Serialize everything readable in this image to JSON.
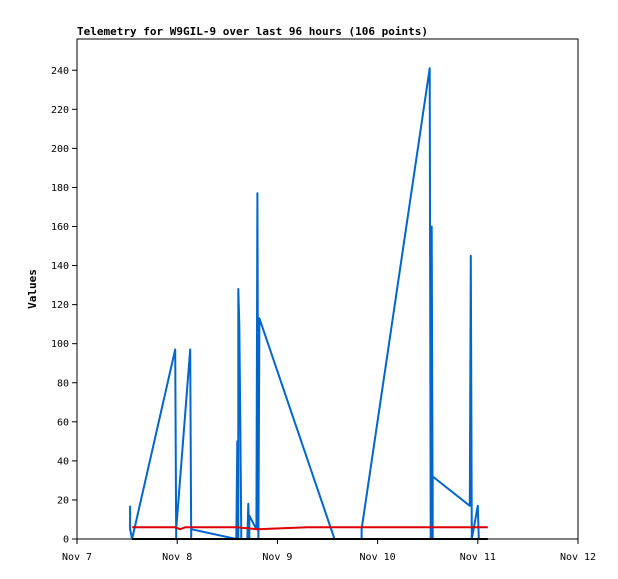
{
  "chart_data": {
    "type": "line",
    "title": "Telemetry for W9GIL-9 over last 96 hours (106 points)",
    "xlabel": "",
    "ylabel": "Values",
    "x_ticks": [
      "Nov 7",
      "Nov 8",
      "Nov 9",
      "Nov 10",
      "Nov 11",
      "Nov 12"
    ],
    "xlim": [
      0,
      5
    ],
    "ylim": [
      0,
      256
    ],
    "y_ticks": [
      0,
      20,
      40,
      60,
      80,
      100,
      120,
      140,
      160,
      180,
      200,
      220,
      240
    ],
    "grid": false,
    "legend": "none",
    "series": [
      {
        "color": "#0066cc",
        "points": [
          [
            0.53,
            17
          ],
          [
            0.53,
            5
          ],
          [
            0.55,
            0
          ],
          [
            0.55,
            0
          ],
          [
            0.98,
            97
          ],
          [
            0.99,
            0
          ],
          [
            0.99,
            5
          ],
          [
            1.13,
            97
          ],
          [
            1.14,
            0
          ],
          [
            1.14,
            5
          ],
          [
            1.59,
            0
          ],
          [
            1.6,
            50
          ],
          [
            1.61,
            0
          ],
          [
            1.61,
            128
          ],
          [
            1.62,
            110
          ],
          [
            1.63,
            60
          ],
          [
            1.64,
            0
          ],
          [
            1.7,
            0
          ],
          [
            1.71,
            18
          ],
          [
            1.72,
            0
          ],
          [
            1.72,
            12
          ],
          [
            1.79,
            5
          ],
          [
            1.8,
            177
          ],
          [
            1.81,
            0
          ],
          [
            1.82,
            113
          ],
          [
            2.57,
            0
          ],
          [
            2.84,
            0
          ],
          [
            2.84,
            5
          ],
          [
            3.52,
            241
          ],
          [
            3.53,
            0
          ],
          [
            3.54,
            160
          ],
          [
            3.55,
            0
          ],
          [
            3.55,
            32
          ],
          [
            3.92,
            17
          ],
          [
            3.93,
            145
          ],
          [
            3.94,
            0
          ],
          [
            4.0,
            17
          ],
          [
            4.01,
            0
          ]
        ]
      },
      {
        "color": "#dd0000",
        "points": [
          [
            0.55,
            6
          ],
          [
            0.98,
            6
          ],
          [
            1.03,
            5
          ],
          [
            1.08,
            6
          ],
          [
            1.59,
            6
          ],
          [
            1.8,
            5
          ],
          [
            2.3,
            6
          ],
          [
            3.52,
            6
          ],
          [
            4.1,
            6
          ]
        ]
      },
      {
        "color": "#000000",
        "points": [
          [
            0.55,
            0
          ],
          [
            4.1,
            0
          ]
        ]
      }
    ]
  }
}
